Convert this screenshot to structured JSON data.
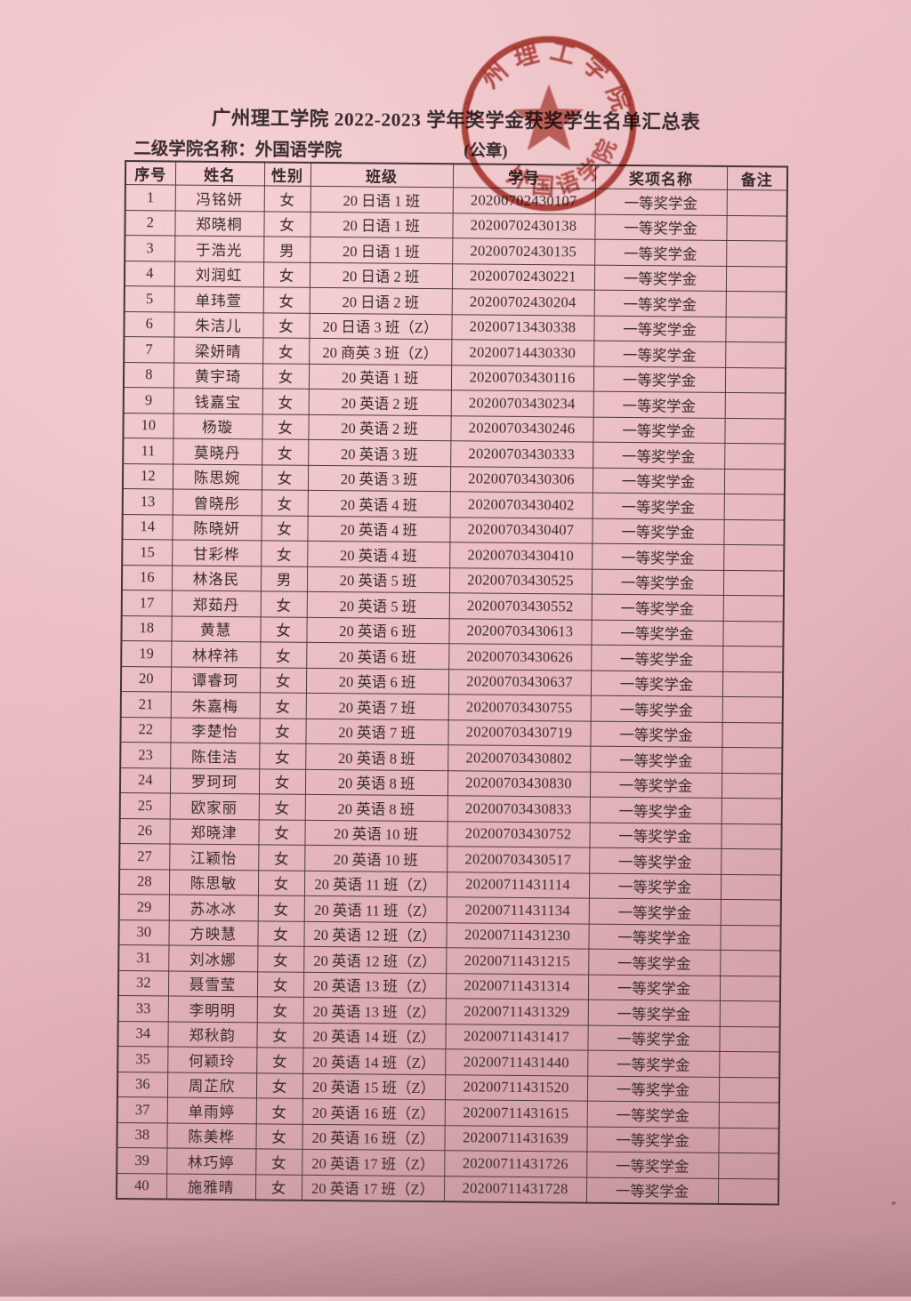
{
  "page": {
    "title": "广州理工学院 2022-2023 学年奖学金获奖学生名单汇总表",
    "college_label": "二级学院名称：外国语学院",
    "seal_placeholder": "(公章)"
  },
  "seal": {
    "ring_text_top": "广州理工学院",
    "ring_text_bottom": "外国语学院",
    "color": "#a93226"
  },
  "table": {
    "headers": [
      "序号",
      "姓名",
      "性别",
      "班级",
      "学号",
      "奖项名称",
      "备注"
    ],
    "rows": [
      [
        "1",
        "冯铭妍",
        "女",
        "20 日语 1 班",
        "20200702430107",
        "一等奖学金",
        ""
      ],
      [
        "2",
        "郑晓桐",
        "女",
        "20 日语 1 班",
        "20200702430138",
        "一等奖学金",
        ""
      ],
      [
        "3",
        "于浩光",
        "男",
        "20 日语 1 班",
        "20200702430135",
        "一等奖学金",
        ""
      ],
      [
        "4",
        "刘润虹",
        "女",
        "20 日语 2 班",
        "20200702430221",
        "一等奖学金",
        ""
      ],
      [
        "5",
        "单玮萱",
        "女",
        "20 日语 2 班",
        "20200702430204",
        "一等奖学金",
        ""
      ],
      [
        "6",
        "朱洁儿",
        "女",
        "20 日语 3 班（Z）",
        "20200713430338",
        "一等奖学金",
        ""
      ],
      [
        "7",
        "梁妍晴",
        "女",
        "20 商英 3 班（Z）",
        "20200714430330",
        "一等奖学金",
        ""
      ],
      [
        "8",
        "黄宇琦",
        "女",
        "20 英语 1 班",
        "20200703430116",
        "一等奖学金",
        ""
      ],
      [
        "9",
        "钱嘉宝",
        "女",
        "20 英语 2 班",
        "20200703430234",
        "一等奖学金",
        ""
      ],
      [
        "10",
        "杨璇",
        "女",
        "20 英语 2 班",
        "20200703430246",
        "一等奖学金",
        ""
      ],
      [
        "11",
        "莫晓丹",
        "女",
        "20 英语 3 班",
        "20200703430333",
        "一等奖学金",
        ""
      ],
      [
        "12",
        "陈思婉",
        "女",
        "20 英语 3 班",
        "20200703430306",
        "一等奖学金",
        ""
      ],
      [
        "13",
        "曾晓彤",
        "女",
        "20 英语 4 班",
        "20200703430402",
        "一等奖学金",
        ""
      ],
      [
        "14",
        "陈晓妍",
        "女",
        "20 英语 4 班",
        "20200703430407",
        "一等奖学金",
        ""
      ],
      [
        "15",
        "甘彩桦",
        "女",
        "20 英语 4 班",
        "20200703430410",
        "一等奖学金",
        ""
      ],
      [
        "16",
        "林洛民",
        "男",
        "20 英语 5 班",
        "20200703430525",
        "一等奖学金",
        ""
      ],
      [
        "17",
        "郑茹丹",
        "女",
        "20 英语 5 班",
        "20200703430552",
        "一等奖学金",
        ""
      ],
      [
        "18",
        "黄慧",
        "女",
        "20 英语 6 班",
        "20200703430613",
        "一等奖学金",
        ""
      ],
      [
        "19",
        "林梓祎",
        "女",
        "20 英语 6 班",
        "20200703430626",
        "一等奖学金",
        ""
      ],
      [
        "20",
        "谭睿珂",
        "女",
        "20 英语 6 班",
        "20200703430637",
        "一等奖学金",
        ""
      ],
      [
        "21",
        "朱嘉梅",
        "女",
        "20 英语 7 班",
        "20200703430755",
        "一等奖学金",
        ""
      ],
      [
        "22",
        "李楚怡",
        "女",
        "20 英语 7 班",
        "20200703430719",
        "一等奖学金",
        ""
      ],
      [
        "23",
        "陈佳洁",
        "女",
        "20 英语 8 班",
        "20200703430802",
        "一等奖学金",
        ""
      ],
      [
        "24",
        "罗珂珂",
        "女",
        "20 英语 8 班",
        "20200703430830",
        "一等奖学金",
        ""
      ],
      [
        "25",
        "欧家丽",
        "女",
        "20 英语 8 班",
        "20200703430833",
        "一等奖学金",
        ""
      ],
      [
        "26",
        "郑晓津",
        "女",
        "20 英语 10 班",
        "20200703430752",
        "一等奖学金",
        ""
      ],
      [
        "27",
        "江颖怡",
        "女",
        "20 英语 10 班",
        "20200703430517",
        "一等奖学金",
        ""
      ],
      [
        "28",
        "陈思敏",
        "女",
        "20 英语 11 班（Z）",
        "20200711431114",
        "一等奖学金",
        ""
      ],
      [
        "29",
        "苏冰冰",
        "女",
        "20 英语 11 班（Z）",
        "20200711431134",
        "一等奖学金",
        ""
      ],
      [
        "30",
        "方映慧",
        "女",
        "20 英语 12 班（Z）",
        "20200711431230",
        "一等奖学金",
        ""
      ],
      [
        "31",
        "刘冰娜",
        "女",
        "20 英语 12 班（Z）",
        "20200711431215",
        "一等奖学金",
        ""
      ],
      [
        "32",
        "聂雪莹",
        "女",
        "20 英语 13 班（Z）",
        "20200711431314",
        "一等奖学金",
        ""
      ],
      [
        "33",
        "李明明",
        "女",
        "20 英语 13 班（Z）",
        "20200711431329",
        "一等奖学金",
        ""
      ],
      [
        "34",
        "郑秋韵",
        "女",
        "20 英语 14 班（Z）",
        "20200711431417",
        "一等奖学金",
        ""
      ],
      [
        "35",
        "何颖玲",
        "女",
        "20 英语 14 班（Z）",
        "20200711431440",
        "一等奖学金",
        ""
      ],
      [
        "36",
        "周芷欣",
        "女",
        "20 英语 15 班（Z）",
        "20200711431520",
        "一等奖学金",
        ""
      ],
      [
        "37",
        "单雨婷",
        "女",
        "20 英语 16 班（Z）",
        "20200711431615",
        "一等奖学金",
        ""
      ],
      [
        "38",
        "陈美桦",
        "女",
        "20 英语 16 班（Z）",
        "20200711431639",
        "一等奖学金",
        ""
      ],
      [
        "39",
        "林巧婷",
        "女",
        "20 英语 17 班（Z）",
        "20200711431726",
        "一等奖学金",
        ""
      ],
      [
        "40",
        "施雅晴",
        "女",
        "20 英语 17 班（Z）",
        "20200711431728",
        "一等奖学金",
        ""
      ]
    ]
  }
}
